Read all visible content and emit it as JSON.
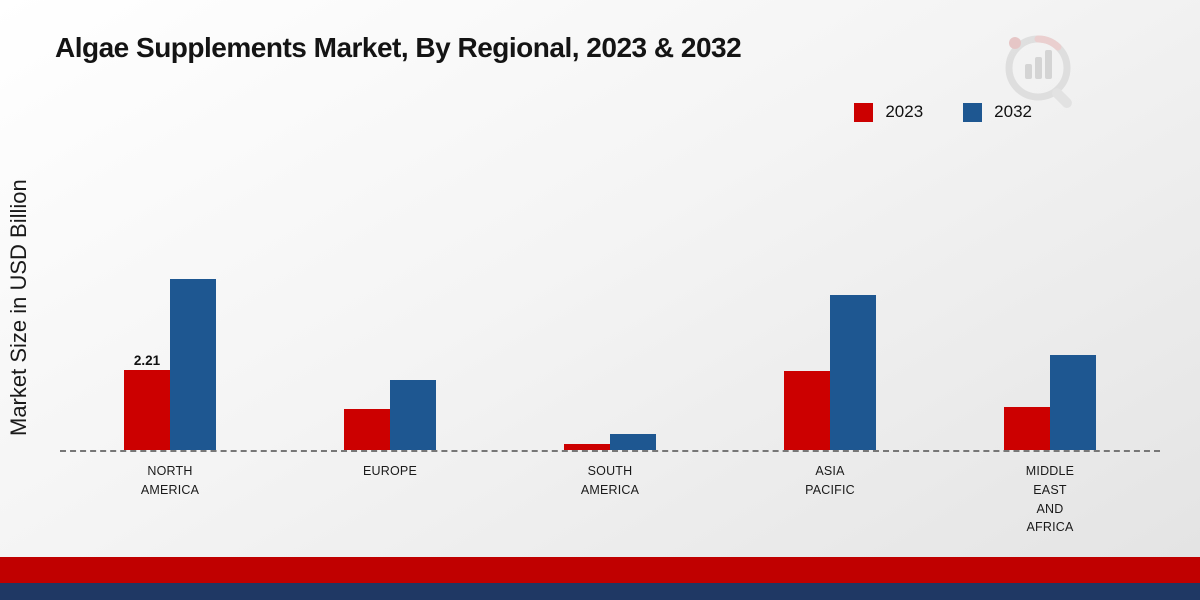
{
  "page": {
    "title": "Algae Supplements Market, By Regional, 2023 & 2032",
    "ylabel": "Market Size in USD Billion"
  },
  "chart_data": {
    "type": "bar",
    "title": "Algae Supplements Market, By Regional, 2023 & 2032",
    "xlabel": "",
    "ylabel": "Market Size in USD Billion",
    "categories": [
      "NORTH AMERICA",
      "EUROPE",
      "SOUTH AMERICA",
      "ASIA PACIFIC",
      "MIDDLE EAST AND AFRICA"
    ],
    "category_display": [
      "NORTH\nAMERICA",
      "EUROPE",
      "SOUTH\nAMERICA",
      "ASIA\nPACIFIC",
      "MIDDLE\nEAST\nAND\nAFRICA"
    ],
    "series": [
      {
        "name": "2023",
        "color": "#cc0000",
        "values": [
          2.21,
          1.15,
          0.18,
          2.2,
          1.2
        ],
        "value_labels": [
          "2.21",
          "",
          "",
          "",
          ""
        ]
      },
      {
        "name": "2032",
        "color": "#1e5791",
        "values": [
          4.75,
          1.95,
          0.45,
          4.3,
          2.65
        ],
        "value_labels": [
          "",
          "",
          "",
          "",
          ""
        ]
      }
    ],
    "units": "USD Billion",
    "ylim": [
      0,
      8.6
    ],
    "grid": false,
    "baseline": "dashed",
    "legend_position": "top-right"
  },
  "footer": {
    "red_bar_color": "#c00000",
    "blue_stripe_color": "#1f3864"
  },
  "branding": {
    "logo_icon": "magnifier-bar-chart-logo"
  }
}
